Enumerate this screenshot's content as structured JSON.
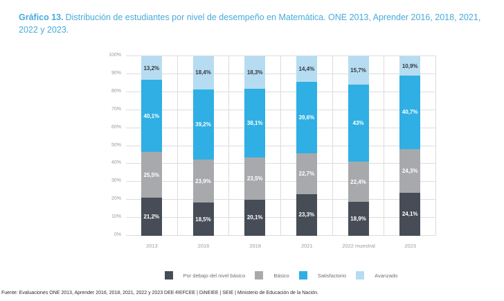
{
  "title": {
    "prefix": "Gráfico 13.",
    "text": "Distribución de estudiantes por nivel de desempeño en Matemática. ONE 2013, Aprender 2016, 2018, 2021, 2022 y 2023."
  },
  "footer": {
    "source": "Fuente: Evaluaciones ONE 2013, Aprender 2016, 2018, 2021, 2022 y 2023 DEE-REFCEE | DiNEIEE | SEIE | Ministerio de Educación de la Nación."
  },
  "colors": {
    "title_blue": "#48aada",
    "gridline": "#dcdcdc",
    "axis_text": "#9b9b9b"
  },
  "chart_data": {
    "type": "bar",
    "stacked": true,
    "grid": true,
    "legend_position": "bottom",
    "ylim": [
      0,
      100
    ],
    "y_ticks": [
      "0%",
      "10%",
      "20%",
      "30%",
      "40%",
      "50%",
      "60%",
      "70%",
      "80%",
      "90%",
      "100%"
    ],
    "categories": [
      "2013",
      "2016",
      "2018",
      "2021",
      "2022 muestral",
      "2023"
    ],
    "series": [
      {
        "id": "por-debajo-del-nivel-basico",
        "name": "Por debajo del nivel básico",
        "color": "#474d57",
        "values": [
          21.2,
          18.5,
          20.1,
          23.3,
          18.9,
          24.1
        ],
        "labels": [
          "21,2%",
          "18,5%",
          "20,1%",
          "23,3%",
          "18,9%",
          "24,1%"
        ]
      },
      {
        "id": "basico",
        "name": "Básico",
        "color": "#a8a9ac",
        "values": [
          25.5,
          23.9,
          23.5,
          22.7,
          22.4,
          24.3
        ],
        "labels": [
          "25,5%",
          "23,9%",
          "23,5%",
          "22,7%",
          "22,4%",
          "24,3%"
        ]
      },
      {
        "id": "satisfactorio",
        "name": "Satisfactorio",
        "color": "#2fafe3",
        "values": [
          40.1,
          39.2,
          38.1,
          39.6,
          43,
          40.7
        ],
        "labels": [
          "40,1%",
          "39,2%",
          "38,1%",
          "39,6%",
          "43%",
          "40,7%"
        ]
      },
      {
        "id": "avanzado",
        "name": "Avanzado",
        "color": "#b6dcf1",
        "values": [
          13.2,
          18.4,
          18.3,
          14.4,
          15.7,
          10.9
        ],
        "labels": [
          "13,2%",
          "18,4%",
          "18,3%",
          "14,4%",
          "15,7%",
          "10,9%"
        ]
      }
    ]
  }
}
